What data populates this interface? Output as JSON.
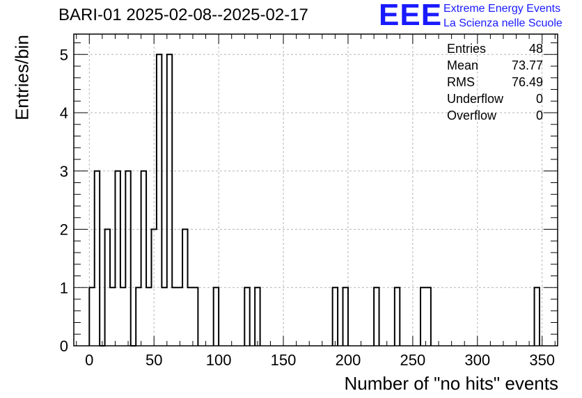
{
  "header": {
    "title": "BARI-01 2025-02-08--2025-02-17"
  },
  "logo": {
    "mark": "EEE",
    "line1": "Extreme Energy Events",
    "line2": "La Scienza nelle Scuole",
    "color": "#1a1aff"
  },
  "stats_box": {
    "rows": [
      {
        "label": "Entries",
        "value": "48"
      },
      {
        "label": "Mean",
        "value": "73.77"
      },
      {
        "label": "RMS",
        "value": "76.49"
      },
      {
        "label": "Underflow",
        "value": "0"
      },
      {
        "label": "Overflow",
        "value": "0"
      }
    ]
  },
  "chart_data": {
    "type": "bar",
    "style": "step-histogram",
    "xlabel": "Number of \"no hits\" events",
    "ylabel": "Entries/bin",
    "xlim": [
      -12,
      362
    ],
    "ylim": [
      0,
      5.35
    ],
    "bin_width": 4,
    "x_ticks": [
      0,
      50,
      100,
      150,
      200,
      250,
      300,
      350
    ],
    "y_ticks": [
      0,
      1,
      2,
      3,
      4,
      5
    ],
    "grid": true,
    "bins": [
      {
        "x": 0,
        "y": 1
      },
      {
        "x": 4,
        "y": 3
      },
      {
        "x": 8,
        "y": 0
      },
      {
        "x": 12,
        "y": 2
      },
      {
        "x": 16,
        "y": 1
      },
      {
        "x": 20,
        "y": 3
      },
      {
        "x": 24,
        "y": 1
      },
      {
        "x": 28,
        "y": 3
      },
      {
        "x": 32,
        "y": 0
      },
      {
        "x": 36,
        "y": 1
      },
      {
        "x": 40,
        "y": 3
      },
      {
        "x": 44,
        "y": 1
      },
      {
        "x": 48,
        "y": 2
      },
      {
        "x": 52,
        "y": 5
      },
      {
        "x": 56,
        "y": 1
      },
      {
        "x": 60,
        "y": 5
      },
      {
        "x": 64,
        "y": 1
      },
      {
        "x": 68,
        "y": 1
      },
      {
        "x": 72,
        "y": 2
      },
      {
        "x": 76,
        "y": 1
      },
      {
        "x": 80,
        "y": 1
      },
      {
        "x": 96,
        "y": 1
      },
      {
        "x": 120,
        "y": 1
      },
      {
        "x": 128,
        "y": 1
      },
      {
        "x": 188,
        "y": 1
      },
      {
        "x": 196,
        "y": 1
      },
      {
        "x": 220,
        "y": 1
      },
      {
        "x": 236,
        "y": 1
      },
      {
        "x": 256,
        "y": 1
      },
      {
        "x": 260,
        "y": 1
      },
      {
        "x": 344,
        "y": 1
      }
    ]
  }
}
